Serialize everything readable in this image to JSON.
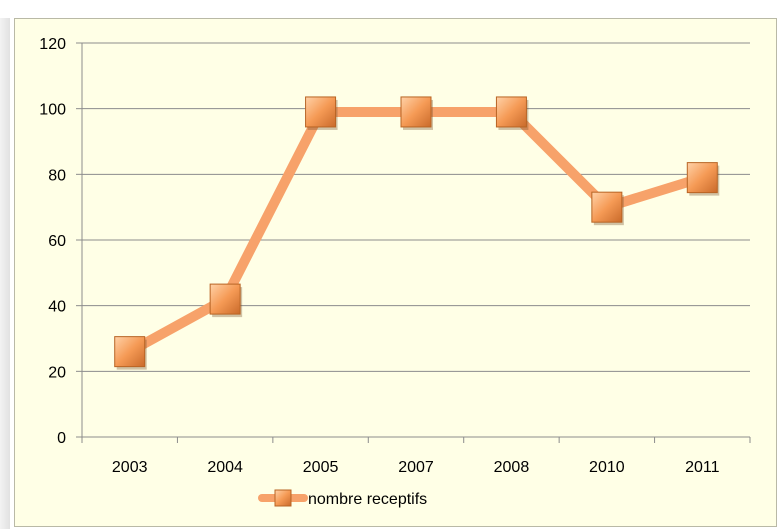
{
  "chart_data": {
    "type": "line",
    "title": "",
    "xlabel": "",
    "ylabel": "",
    "categories": [
      "2003",
      "2004",
      "2005",
      "2007",
      "2008",
      "2010",
      "2011"
    ],
    "series": [
      {
        "name": "nombre receptifs",
        "values": [
          26,
          42,
          99,
          99,
          99,
          70,
          79
        ],
        "color": "#f7a26a",
        "marker": "square"
      }
    ],
    "ylim": [
      0,
      120
    ],
    "yticks": [
      0,
      20,
      40,
      60,
      80,
      100,
      120
    ],
    "grid": true,
    "legend": "bottom",
    "background": "#ffffe6",
    "marker_color": "#f08a3e"
  }
}
